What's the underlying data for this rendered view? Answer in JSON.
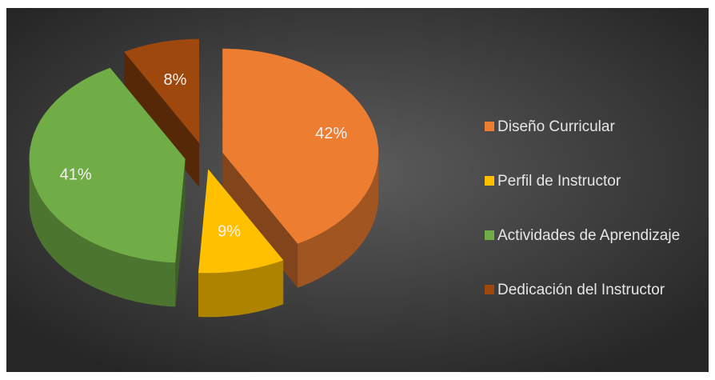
{
  "chart_data": {
    "type": "pie",
    "categories": [
      "Diseño Curricular",
      "Perfil de Instructor",
      "Actividades de Aprendizaje",
      "Dedicación del Instructor"
    ],
    "values": [
      42,
      9,
      41,
      8
    ],
    "value_labels": [
      "42%",
      "9%",
      "41%",
      "8%"
    ],
    "colors": [
      "#ed7d31",
      "#ffc000",
      "#70ad47",
      "#9e480e"
    ],
    "legend": "right",
    "exploded": true,
    "three_d": true
  }
}
